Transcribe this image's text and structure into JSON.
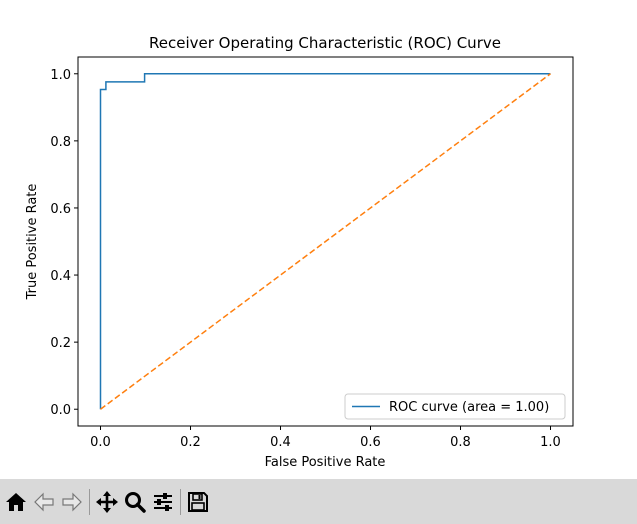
{
  "chart_data": {
    "type": "line",
    "title": "Receiver Operating Characteristic (ROC) Curve",
    "xlabel": "False Positive Rate",
    "ylabel": "True Positive Rate",
    "xlim": [
      -0.05,
      1.05
    ],
    "ylim": [
      -0.05,
      1.05
    ],
    "xticks": [
      0.0,
      0.2,
      0.4,
      0.6,
      0.8,
      1.0
    ],
    "xtick_labels": [
      "0.0",
      "0.2",
      "0.4",
      "0.6",
      "0.8",
      "1.0"
    ],
    "yticks": [
      0.0,
      0.2,
      0.4,
      0.6,
      0.8,
      1.0
    ],
    "ytick_labels": [
      "0.0",
      "0.2",
      "0.4",
      "0.6",
      "0.8",
      "1.0"
    ],
    "grid": false,
    "legend_position": "lower right",
    "series": [
      {
        "name": "ROC curve (area = 1.00)",
        "color": "#1f77b4",
        "style": "solid",
        "x": [
          0.0,
          0.0,
          0.0,
          0.012,
          0.012,
          0.098,
          0.098,
          1.0
        ],
        "y": [
          0.0,
          0.953,
          0.953,
          0.953,
          0.976,
          0.976,
          1.0,
          1.0
        ]
      },
      {
        "color": "#ff7f0e",
        "style": "dashed",
        "x": [
          0.0,
          1.0
        ],
        "y": [
          0.0,
          1.0
        ]
      }
    ]
  },
  "toolbar": {
    "buttons": [
      {
        "icon": "home-icon"
      },
      {
        "icon": "back-arrow-icon"
      },
      {
        "icon": "forward-arrow-icon"
      },
      {
        "icon": "pan-icon"
      },
      {
        "icon": "zoom-icon"
      },
      {
        "icon": "configure-subplots-icon"
      },
      {
        "icon": "save-icon"
      }
    ]
  }
}
